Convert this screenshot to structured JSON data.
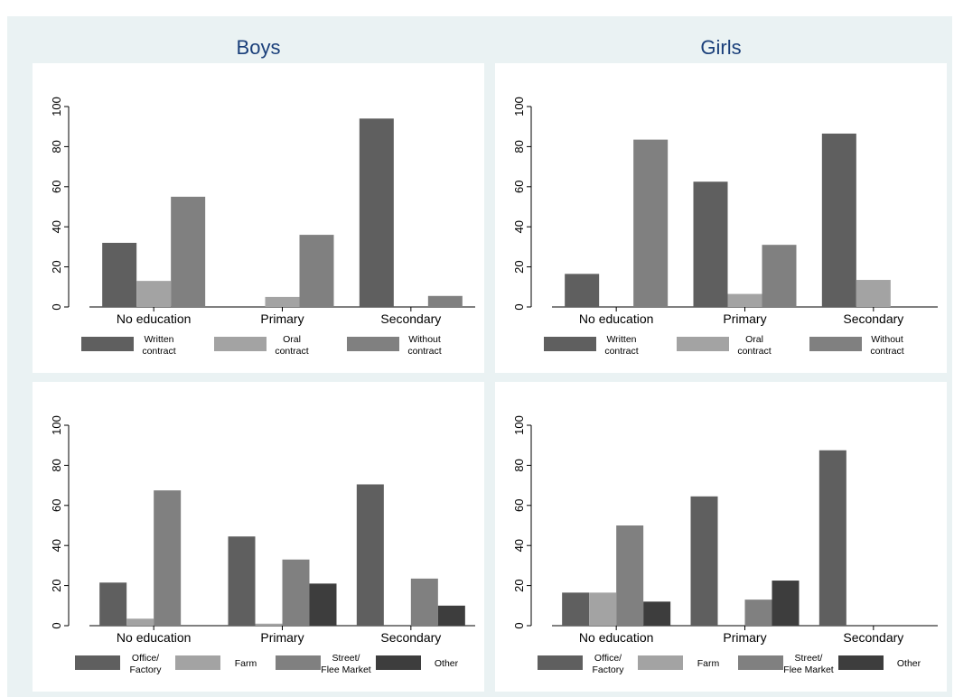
{
  "column_titles": {
    "boys": "Boys",
    "girls": "Girls"
  },
  "colors": {
    "dark": "#5f5f5f",
    "light": "#a3a3a3",
    "medium": "#808080",
    "darkest": "#3d3d3d",
    "background": "#eaf2f3"
  },
  "chart_data": [
    {
      "type": "bar",
      "title": "Boys",
      "categories": [
        "No education",
        "Primary",
        "Secondary"
      ],
      "ylim": [
        0,
        100
      ],
      "yticks": [
        "0",
        "20",
        "40",
        "60",
        "80",
        "100"
      ],
      "grid": false,
      "legend_position": "bottom",
      "series": [
        {
          "name": "Written contract",
          "legend_lines": [
            "Written",
            "contract"
          ],
          "color": "#5f5f5f",
          "values": [
            32,
            0,
            94
          ]
        },
        {
          "name": "Oral contract",
          "legend_lines": [
            "Oral",
            "contract"
          ],
          "color": "#a3a3a3",
          "values": [
            13,
            5,
            0
          ]
        },
        {
          "name": "Without contract",
          "legend_lines": [
            "Without",
            "contract"
          ],
          "color": "#808080",
          "values": [
            55,
            36,
            5.5
          ]
        }
      ]
    },
    {
      "type": "bar",
      "title": "Girls",
      "categories": [
        "No education",
        "Primary",
        "Secondary"
      ],
      "ylim": [
        0,
        100
      ],
      "yticks": [
        "0",
        "20",
        "40",
        "60",
        "80",
        "100"
      ],
      "grid": false,
      "legend_position": "bottom",
      "series": [
        {
          "name": "Written contract",
          "legend_lines": [
            "Written",
            "contract"
          ],
          "color": "#5f5f5f",
          "values": [
            16.5,
            62.5,
            86.5
          ]
        },
        {
          "name": "Oral contract",
          "legend_lines": [
            "Oral",
            "contract"
          ],
          "color": "#a3a3a3",
          "values": [
            0,
            6.5,
            13.5
          ]
        },
        {
          "name": "Without contract",
          "legend_lines": [
            "Without",
            "contract"
          ],
          "color": "#808080",
          "values": [
            83.5,
            31,
            0
          ]
        }
      ]
    },
    {
      "type": "bar",
      "title": "Boys",
      "categories": [
        "No education",
        "Primary",
        "Secondary"
      ],
      "ylim": [
        0,
        100
      ],
      "yticks": [
        "0",
        "20",
        "40",
        "60",
        "80",
        "100"
      ],
      "grid": false,
      "legend_position": "bottom",
      "series": [
        {
          "name": "Office/ Factory",
          "legend_lines": [
            "Office/",
            "Factory"
          ],
          "color": "#5f5f5f",
          "values": [
            21.5,
            44.5,
            70.5
          ]
        },
        {
          "name": "Farm",
          "legend_lines": [
            "Farm"
          ],
          "color": "#a3a3a3",
          "values": [
            3.5,
            1,
            0
          ]
        },
        {
          "name": "Street/ Flee Market",
          "legend_lines": [
            "Street/",
            "Flee Market"
          ],
          "color": "#808080",
          "values": [
            67.5,
            33,
            23.5
          ]
        },
        {
          "name": "Other",
          "legend_lines": [
            "Other"
          ],
          "color": "#3d3d3d",
          "values": [
            0,
            21,
            10
          ]
        }
      ]
    },
    {
      "type": "bar",
      "title": "Girls",
      "categories": [
        "No education",
        "Primary",
        "Secondary"
      ],
      "ylim": [
        0,
        100
      ],
      "yticks": [
        "0",
        "20",
        "40",
        "60",
        "80",
        "100"
      ],
      "grid": false,
      "legend_position": "bottom",
      "series": [
        {
          "name": "Office/ Factory",
          "legend_lines": [
            "Office/",
            "Factory"
          ],
          "color": "#5f5f5f",
          "values": [
            16.5,
            64.5,
            87.5
          ]
        },
        {
          "name": "Farm",
          "legend_lines": [
            "Farm"
          ],
          "color": "#a3a3a3",
          "values": [
            16.5,
            0,
            0
          ]
        },
        {
          "name": "Street/ Flee Market",
          "legend_lines": [
            "Street/",
            "Flee Market"
          ],
          "color": "#808080",
          "values": [
            50,
            13,
            0
          ]
        },
        {
          "name": "Other",
          "legend_lines": [
            "Other"
          ],
          "color": "#3d3d3d",
          "values": [
            12,
            22.5,
            0
          ]
        }
      ]
    }
  ]
}
